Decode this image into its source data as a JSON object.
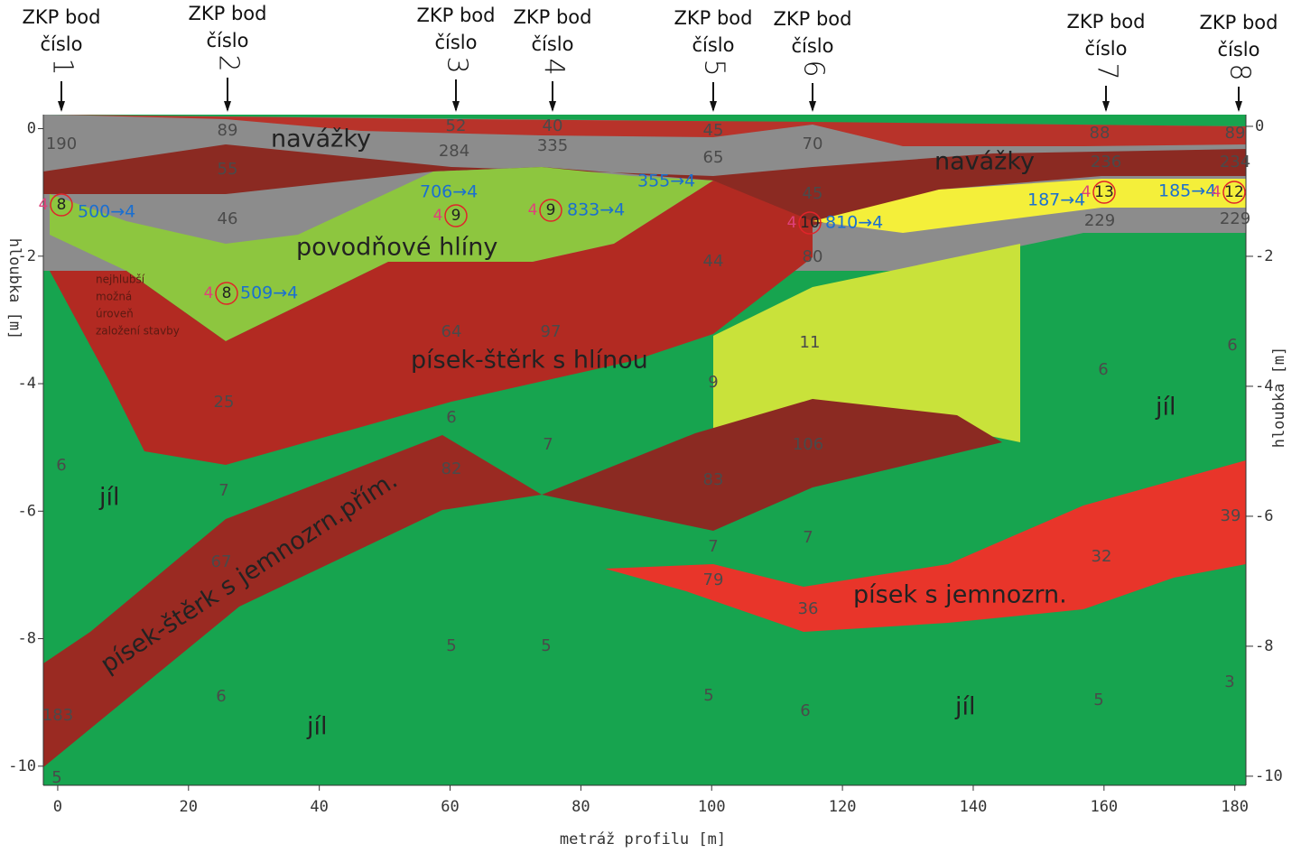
{
  "axes": {
    "x_label": "metráž profilu [m]",
    "y_label_left": "hloubka [m]",
    "y_label_right": "hloubka [m]",
    "xlim": [
      -2.2,
      181.7
    ],
    "xticks": [
      0,
      20,
      40,
      60,
      80,
      100,
      120,
      140,
      160,
      180
    ],
    "ylim_left": [
      0.22,
      -10.3
    ],
    "yticks_left": [
      0,
      -2,
      -4,
      -6,
      -8,
      -10
    ],
    "ylim_right": [
      0.18,
      -10.14
    ],
    "yticks_right": [
      0,
      -2,
      -4,
      -6,
      -8,
      -10
    ]
  },
  "boreholes": [
    {
      "title": "ZKP bod",
      "subtitle": "číslo",
      "number": "1"
    },
    {
      "title": "ZKP bod",
      "subtitle": "číslo",
      "number": "2"
    },
    {
      "title": "ZKP bod",
      "subtitle": "číslo",
      "number": "3"
    },
    {
      "title": "ZKP bod",
      "subtitle": "číslo",
      "number": "4"
    },
    {
      "title": "ZKP bod",
      "subtitle": "číslo",
      "number": "5"
    },
    {
      "title": "ZKP bod",
      "subtitle": "číslo",
      "number": "6"
    },
    {
      "title": "ZKP bod",
      "subtitle": "číslo",
      "number": "7"
    },
    {
      "title": "ZKP bod",
      "subtitle": "číslo",
      "number": "8"
    }
  ],
  "layers": [
    "navážky",
    "navážky",
    "povodňové hlíny",
    "písek-štěrk s hlínou",
    "jíl",
    "písek-štěrk s jemnozrn.přím.",
    "písek s jemnozrn.",
    "jíl",
    "jíl",
    "jíl"
  ],
  "note": [
    "nejhlubší",
    "možná",
    "úroveň",
    "založení stavby"
  ],
  "resistivity": [
    "190",
    "89",
    "52",
    "40",
    "45",
    "70",
    "88",
    "89",
    "55",
    "284",
    "335",
    "65",
    "236",
    "234",
    "46",
    "45",
    "229",
    "229",
    "44",
    "80",
    "64",
    "97",
    "11",
    "6",
    "6",
    "25",
    "9",
    "6",
    "7",
    "106",
    "6",
    "82",
    "7",
    "83",
    "39",
    "7",
    "7",
    "67",
    "79",
    "32",
    "36",
    "5",
    "5",
    "6",
    "5",
    "6",
    "5",
    "3",
    "183",
    "5"
  ],
  "conductivity": [
    "500→4",
    "706→4",
    "833→4",
    "355→4",
    "810→4",
    "187→4",
    "185→4",
    "509→4"
  ],
  "circled": [
    "8",
    "9",
    "9",
    "8",
    "10",
    "13",
    "12"
  ],
  "circled_prefix": [
    "4",
    "4",
    "4",
    "4",
    "4",
    "4",
    "4"
  ]
}
